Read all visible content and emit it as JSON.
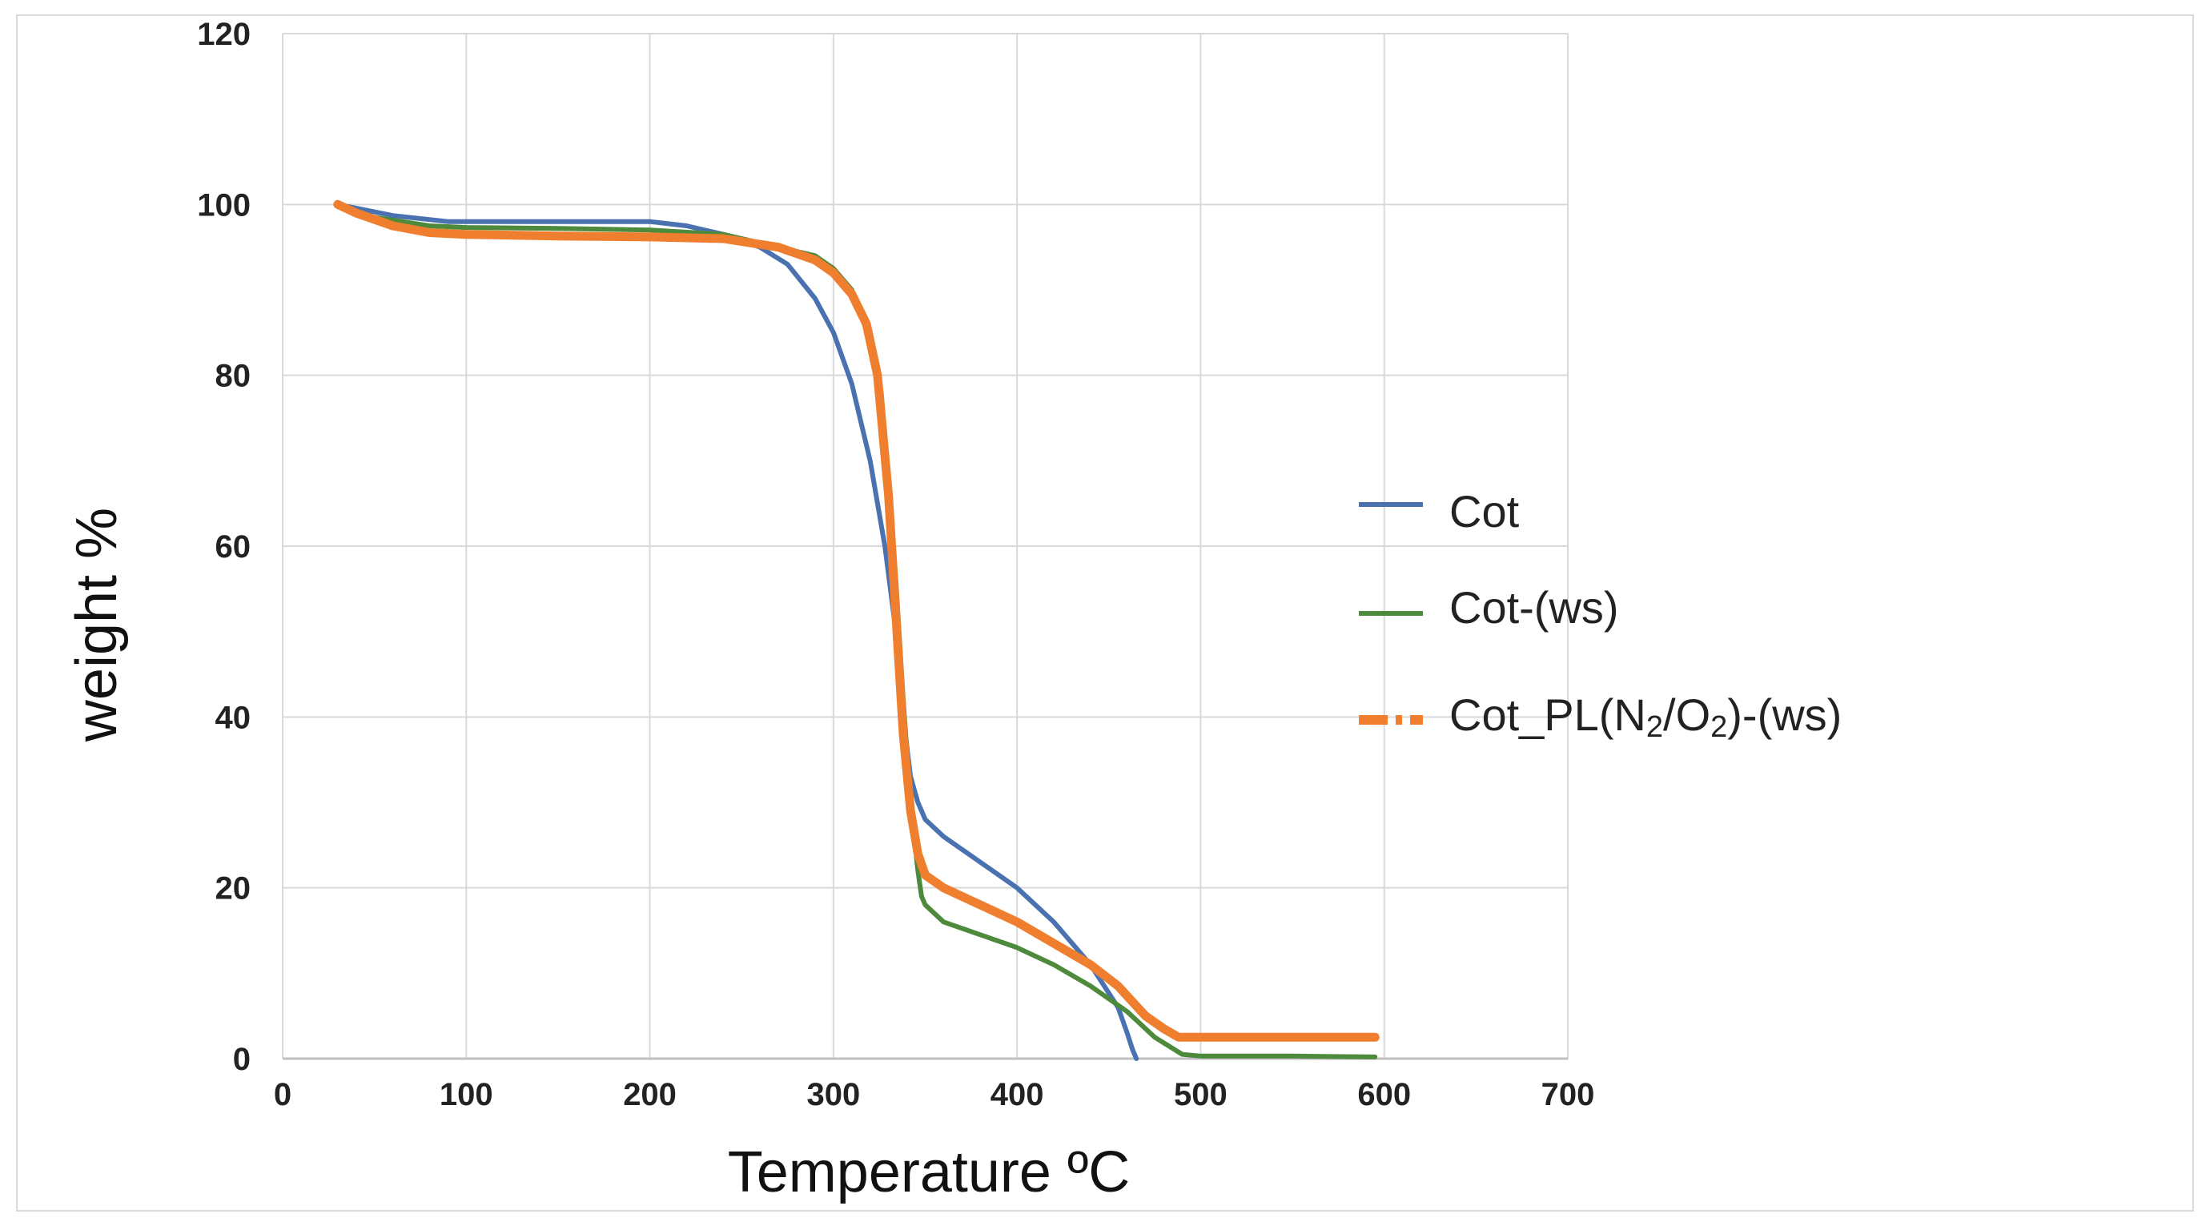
{
  "chart_data": {
    "type": "line",
    "title": "",
    "xlabel": "Temperature  ºC",
    "ylabel": "weight %",
    "xlim": [
      0,
      700
    ],
    "ylim": [
      0,
      120
    ],
    "xticks": [
      0,
      100,
      200,
      300,
      400,
      500,
      600,
      700
    ],
    "yticks": [
      0,
      20,
      40,
      60,
      80,
      100,
      120
    ],
    "xtick_labels": [
      "0",
      "100",
      "200",
      "300",
      "400",
      "500",
      "600",
      "700"
    ],
    "ytick_labels": [
      "0",
      "20",
      "40",
      "60",
      "80",
      "100",
      "120"
    ],
    "grid": true,
    "legend_position": "right",
    "series": [
      {
        "name": "Cot",
        "color": "#4a72b0",
        "style": "solid",
        "x": [
          30,
          60,
          90,
          150,
          200,
          220,
          240,
          260,
          275,
          290,
          300,
          310,
          320,
          328,
          334,
          338,
          342,
          346,
          350,
          360,
          380,
          400,
          420,
          440,
          455,
          460,
          463,
          465
        ],
        "y": [
          100,
          98.7,
          98,
          98,
          98,
          97.5,
          96.5,
          95,
          93,
          89,
          85,
          79,
          70,
          60,
          50,
          40,
          33,
          30,
          28,
          26,
          23,
          20,
          16,
          11,
          6,
          3,
          1,
          0
        ]
      },
      {
        "name": "Cot-(ws)",
        "color": "#4e8a3c",
        "style": "solid",
        "x": [
          30,
          50,
          80,
          100,
          150,
          200,
          240,
          270,
          290,
          300,
          310,
          320,
          326,
          330,
          334,
          338,
          342,
          346,
          348,
          350,
          360,
          380,
          400,
          420,
          440,
          460,
          475,
          490,
          500,
          550,
          595
        ],
        "y": [
          100,
          98.5,
          97.5,
          97.3,
          97.2,
          97,
          96.5,
          95,
          94,
          92.5,
          90,
          85,
          78,
          68,
          56,
          42,
          30,
          22,
          19,
          18,
          16,
          14.5,
          13,
          11,
          8.5,
          5.5,
          2.5,
          0.5,
          0.3,
          0.3,
          0.2
        ]
      },
      {
        "name": "Cot_PL(N2/O2)-(ws)",
        "color": "#ef7f2f",
        "style": "dash-dot",
        "x": [
          30,
          40,
          60,
          80,
          100,
          150,
          200,
          240,
          270,
          290,
          300,
          310,
          318,
          324,
          330,
          334,
          338,
          342,
          346,
          350,
          360,
          380,
          400,
          420,
          440,
          455,
          470,
          480,
          488,
          495,
          550,
          595
        ],
        "y": [
          100,
          99,
          97.5,
          96.7,
          96.5,
          96.3,
          96.2,
          96,
          95,
          93.5,
          92,
          89.5,
          86,
          80,
          66,
          52,
          38,
          29,
          24,
          21.5,
          20,
          18,
          16,
          13.5,
          11,
          8.5,
          5,
          3.5,
          2.5,
          2.5,
          2.5,
          2.5
        ]
      }
    ]
  },
  "legend": {
    "items": [
      {
        "label": "Cot",
        "color": "#4a72b0",
        "style": "solid"
      },
      {
        "label": "Cot-(ws)",
        "color": "#4e8a3c",
        "style": "solid"
      },
      {
        "label_parts": [
          "Cot_PL(N",
          "2",
          "/O",
          "2",
          ")-(ws)"
        ],
        "color": "#ef7f2f",
        "style": "dash-dot"
      }
    ]
  }
}
